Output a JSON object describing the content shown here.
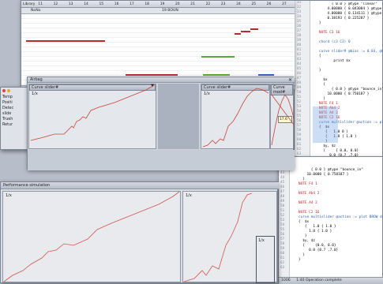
{
  "timeline_window": {
    "ruler_marks": [
      "Library",
      "11",
      "12",
      "13",
      "14",
      "15",
      "16",
      "17",
      "18",
      "19",
      "20",
      "21",
      "22",
      "23",
      "24",
      "25",
      "26",
      "27"
    ],
    "track_label": "NoNo",
    "track_value": "19 BOUN"
  },
  "curves_window": {
    "title": "Airbag",
    "curve1_title": "Curve slider#",
    "curve2_title": "Curve slider#",
    "curve3_title": "Curve mod#",
    "axis_label": "1/x",
    "popup_text": "17.6",
    "side_labels": [
      "Temp",
      "Positi",
      "Detec",
      "slide",
      "Trueh",
      "Retur"
    ]
  },
  "perf_window": {
    "title": "Performance simulation",
    "axis_label": "1/x",
    "box_label": "1/x"
  },
  "code_window_top": {
    "line_numbers": [
      "31",
      "32",
      "33",
      "34",
      "35",
      "36",
      "37",
      "38",
      "39",
      "40",
      "41",
      "42",
      "43",
      "44",
      "45",
      "46",
      "47",
      "48",
      "49",
      "50",
      "51",
      "52",
      "53",
      "54",
      "55",
      "56",
      "57",
      "58",
      "59",
      "60",
      "61",
      "62",
      "63",
      "64",
      "65",
      "66",
      "67",
      "68",
      "69",
      "70",
      "71",
      "72",
      "73"
    ],
    "status_number": "1006",
    "status_text": "1:40   Operation complete"
  },
  "code_window_bottom": {
    "line_numbers": [
      "40",
      "41",
      "42",
      "43",
      "44",
      "45",
      "46",
      "47",
      "48",
      "49",
      "50",
      "51",
      "52",
      "53",
      "54",
      "55",
      "56",
      "57",
      "58",
      "59",
      "60",
      "61",
      "62",
      "63"
    ],
    "status_number": "1006",
    "status_text": "1:40   Operation complete"
  }
}
